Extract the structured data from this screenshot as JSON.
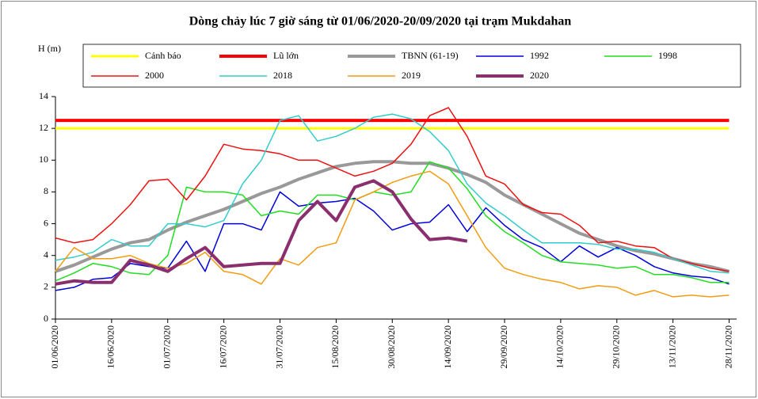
{
  "chart_data": {
    "type": "line",
    "title": "Dòng chảy lúc 7 giờ sáng từ 01/06/2020-20/09/2020 tại trạm Mukdahan",
    "y_label": "H (m)",
    "x": [
      "01/06/2020",
      "06/06/2020",
      "11/06/2020",
      "16/06/2020",
      "21/06/2020",
      "26/06/2020",
      "01/07/2020",
      "06/07/2020",
      "11/07/2020",
      "16/07/2020",
      "21/07/2020",
      "26/07/2020",
      "31/07/2020",
      "05/08/2020",
      "10/08/2020",
      "15/08/2020",
      "20/08/2020",
      "25/08/2020",
      "30/08/2020",
      "04/09/2020",
      "09/09/2020",
      "14/09/2020",
      "19/09/2020",
      "24/09/2020",
      "29/09/2020",
      "04/10/2020",
      "09/10/2020",
      "14/10/2020",
      "19/10/2020",
      "24/10/2020",
      "29/10/2020",
      "03/11/2020",
      "08/11/2020",
      "13/11/2020",
      "18/11/2020",
      "23/11/2020",
      "28/11/2020"
    ],
    "xlim": [
      "01/06/2020",
      "30/11/2020"
    ],
    "xticks": [
      "01/06/2020",
      "16/06/2020",
      "01/07/2020",
      "16/07/2020",
      "31/07/2020",
      "15/08/2020",
      "30/08/2020",
      "14/09/2020",
      "29/09/2020",
      "14/10/2020",
      "29/10/2020",
      "13/11/2020",
      "28/11/2020"
    ],
    "ylim": [
      0,
      14
    ],
    "yticks": [
      0,
      2,
      4,
      6,
      8,
      10,
      12,
      14
    ],
    "series": [
      {
        "name": "Cảnh báo",
        "color": "#ffff00",
        "values": [
          12,
          12,
          12,
          12,
          12,
          12,
          12,
          12,
          12,
          12,
          12,
          12,
          12,
          12,
          12,
          12,
          12,
          12,
          12,
          12,
          12,
          12,
          12,
          12,
          12,
          12,
          12,
          12,
          12,
          12,
          12,
          12,
          12,
          12,
          12,
          12,
          12
        ]
      },
      {
        "name": "Lũ lớn",
        "color": "#ff0000",
        "values": [
          12.5,
          12.5,
          12.5,
          12.5,
          12.5,
          12.5,
          12.5,
          12.5,
          12.5,
          12.5,
          12.5,
          12.5,
          12.5,
          12.5,
          12.5,
          12.5,
          12.5,
          12.5,
          12.5,
          12.5,
          12.5,
          12.5,
          12.5,
          12.5,
          12.5,
          12.5,
          12.5,
          12.5,
          12.5,
          12.5,
          12.5,
          12.5,
          12.5,
          12.5,
          12.5,
          12.5,
          12.5
        ]
      },
      {
        "name": "TBNN (61-19)",
        "color": "#999999",
        "values": [
          3.0,
          3.4,
          3.9,
          4.4,
          4.8,
          5.0,
          5.6,
          6.1,
          6.5,
          6.9,
          7.4,
          7.9,
          8.3,
          8.8,
          9.2,
          9.6,
          9.8,
          9.9,
          9.9,
          9.8,
          9.8,
          9.5,
          9.1,
          8.6,
          7.8,
          7.2,
          6.6,
          6.0,
          5.4,
          5.0,
          4.6,
          4.3,
          4.1,
          3.8,
          3.5,
          3.3,
          3.0
        ]
      },
      {
        "name": "1992",
        "color": "#0000dd",
        "values": [
          1.8,
          2.0,
          2.5,
          2.6,
          3.5,
          3.3,
          3.2,
          4.9,
          3.0,
          6.0,
          6.0,
          5.6,
          8.0,
          7.1,
          7.3,
          7.4,
          7.6,
          6.8,
          5.6,
          6.0,
          6.1,
          7.2,
          5.5,
          7.0,
          5.9,
          5.0,
          4.5,
          3.6,
          4.6,
          3.9,
          4.5,
          4.0,
          3.3,
          2.9,
          2.7,
          2.6,
          2.2
        ]
      },
      {
        "name": "1998",
        "color": "#22dd22",
        "values": [
          2.4,
          2.9,
          3.5,
          3.3,
          2.9,
          2.8,
          4.0,
          8.3,
          8.0,
          8.0,
          7.8,
          6.5,
          6.8,
          6.6,
          7.8,
          7.8,
          7.5,
          8.0,
          7.8,
          8.0,
          9.9,
          9.5,
          8.2,
          6.5,
          5.5,
          4.8,
          4.0,
          3.6,
          3.5,
          3.4,
          3.2,
          3.3,
          2.8,
          2.8,
          2.6,
          2.3,
          2.3
        ]
      },
      {
        "name": "2000",
        "color": "#ee1111",
        "values": [
          5.1,
          4.8,
          5.0,
          6.0,
          7.2,
          8.7,
          8.8,
          7.5,
          9.0,
          11.0,
          10.7,
          10.6,
          10.4,
          10.0,
          10.0,
          9.5,
          9.0,
          9.3,
          9.8,
          11.0,
          12.8,
          13.3,
          11.5,
          9.0,
          8.5,
          7.2,
          6.7,
          6.6,
          5.9,
          4.8,
          4.9,
          4.6,
          4.5,
          3.8,
          3.5,
          3.2,
          3.0
        ]
      },
      {
        "name": "2018",
        "color": "#33cccc",
        "values": [
          3.7,
          3.9,
          4.2,
          5.0,
          4.6,
          4.6,
          6.0,
          6.0,
          5.8,
          6.2,
          8.5,
          10.0,
          12.5,
          12.8,
          11.2,
          11.5,
          12.0,
          12.7,
          12.9,
          12.6,
          11.8,
          10.6,
          8.5,
          7.3,
          6.5,
          5.6,
          4.8,
          4.8,
          4.8,
          4.7,
          4.4,
          4.4,
          4.2,
          3.8,
          3.4,
          3.0,
          2.9
        ]
      },
      {
        "name": "2019",
        "color": "#f39c12",
        "values": [
          3.0,
          4.5,
          3.8,
          3.8,
          4.0,
          3.5,
          3.2,
          3.5,
          4.2,
          3.0,
          2.8,
          2.2,
          3.8,
          3.4,
          4.5,
          4.8,
          7.5,
          8.0,
          8.6,
          9.0,
          9.3,
          8.5,
          6.5,
          4.5,
          3.2,
          2.8,
          2.5,
          2.3,
          1.9,
          2.1,
          2.0,
          1.5,
          1.8,
          1.4,
          1.5,
          1.4,
          1.5
        ]
      },
      {
        "name": "2020",
        "color": "#8b2e6e",
        "values": [
          2.2,
          2.4,
          2.3,
          2.3,
          3.7,
          3.4,
          3.0,
          3.8,
          4.5,
          3.3,
          3.4,
          3.5,
          3.5,
          6.2,
          7.4,
          6.2,
          8.3,
          8.7,
          8.0,
          6.3,
          5.0,
          5.1,
          4.9,
          null,
          null,
          null,
          null,
          null,
          null,
          null,
          null,
          null,
          null,
          null,
          null,
          null,
          null
        ]
      }
    ]
  }
}
